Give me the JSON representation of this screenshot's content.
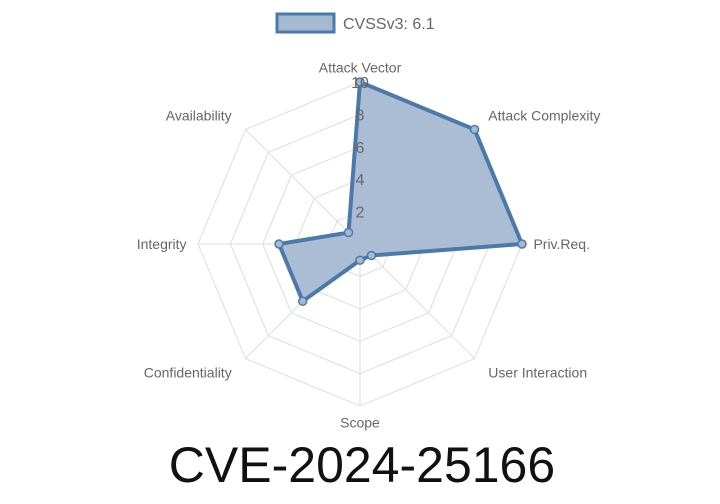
{
  "chart_data": {
    "type": "radar",
    "title": "CVE-2024-25166",
    "axes": [
      "Attack Vector",
      "Attack Complexity",
      "Priv.Req.",
      "User Interaction",
      "Scope",
      "Confidentiality",
      "Integrity",
      "Availability"
    ],
    "series": [
      {
        "name": "CVSSv3: 6.1",
        "values": [
          10,
          10,
          10,
          1,
          1,
          5,
          5,
          1
        ]
      }
    ],
    "rlim": [
      0,
      10
    ],
    "ticks": [
      "2",
      "4",
      "6",
      "8",
      "10"
    ],
    "grid": true,
    "legend": "top",
    "colors": {
      "line": "#4e79a7",
      "fill": "#a5b9d3",
      "grid": "#dddddd"
    }
  }
}
